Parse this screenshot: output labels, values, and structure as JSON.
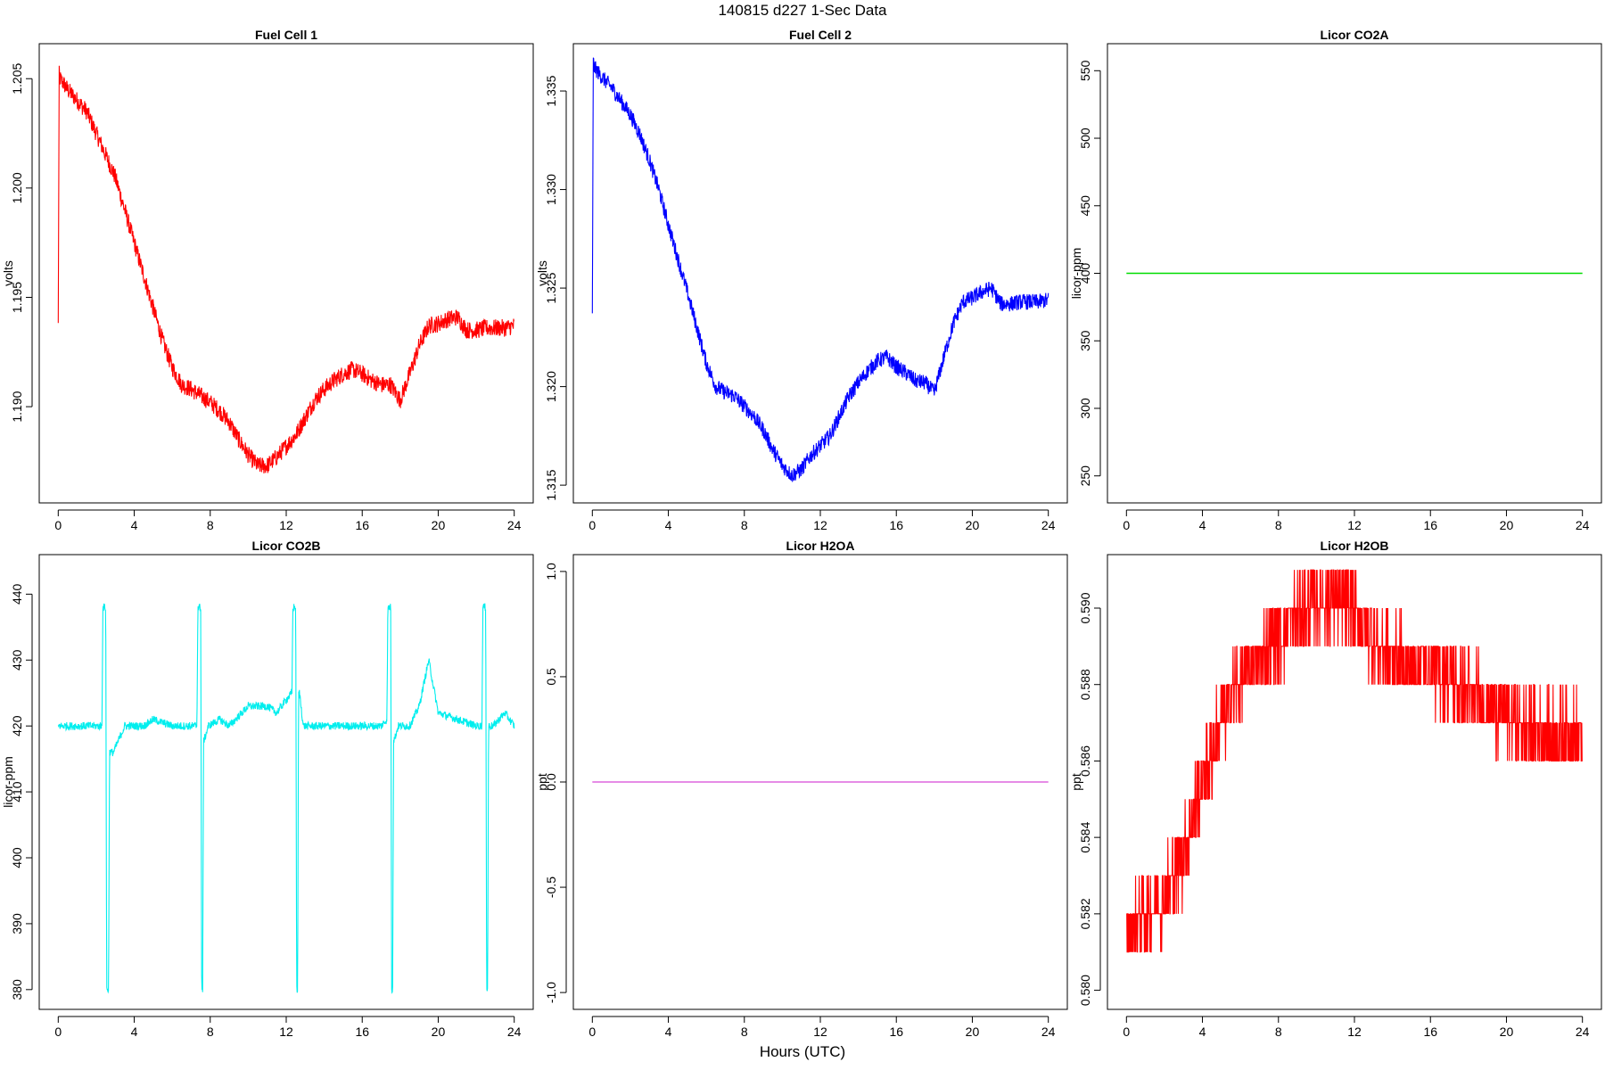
{
  "page": {
    "title": "140815   d227   1-Sec Data",
    "xlabel": "Hours (UTC)"
  },
  "chart_data": [
    {
      "type": "line",
      "title": "Fuel Cell 1",
      "ylabel": "volts",
      "color": "#ff0000",
      "xlim": [
        -1,
        25
      ],
      "ylim": [
        1.1856,
        1.2066
      ],
      "xticks": [
        0,
        4,
        8,
        12,
        16,
        20,
        24
      ],
      "yticks": [
        1.19,
        1.195,
        1.2,
        1.205
      ],
      "ytick_labels": [
        "1.190",
        "1.195",
        "1.200",
        "1.205"
      ],
      "noise": 0.0004,
      "series": [
        {
          "x": [
            0,
            0.05,
            0.1,
            0.5,
            1.0,
            1.5,
            2.0,
            2.5,
            3.0,
            3.5,
            4.0,
            4.5,
            5.0,
            5.5,
            6.0,
            6.5,
            7.0,
            7.5,
            8.0,
            8.5,
            9.0,
            9.5,
            10.0,
            10.5,
            11.0,
            11.5,
            12.0,
            12.5,
            13.0,
            13.5,
            14.0,
            14.5,
            15.0,
            15.5,
            16.0,
            16.5,
            17.0,
            17.5,
            18.0,
            18.5,
            19.0,
            19.5,
            20.0,
            20.5,
            21.0,
            21.5,
            22.0,
            22.5,
            23.0,
            23.5,
            24.0
          ],
          "y": [
            1.1937,
            1.2052,
            1.205,
            1.2045,
            1.204,
            1.2035,
            1.2025,
            1.2015,
            1.2005,
            1.199,
            1.1975,
            1.196,
            1.1945,
            1.193,
            1.1918,
            1.191,
            1.1908,
            1.1905,
            1.1902,
            1.1898,
            1.1893,
            1.1885,
            1.1878,
            1.1873,
            1.1873,
            1.1877,
            1.1882,
            1.1887,
            1.1895,
            1.1903,
            1.1908,
            1.1912,
            1.1915,
            1.1917,
            1.1915,
            1.1912,
            1.191,
            1.191,
            1.1903,
            1.1915,
            1.1928,
            1.1937,
            1.1938,
            1.194,
            1.1941,
            1.1935,
            1.1935,
            1.1936,
            1.1936,
            1.1936,
            1.1937
          ]
        }
      ]
    },
    {
      "type": "line",
      "title": "Fuel Cell 2",
      "ylabel": "volts",
      "color": "#0000ff",
      "xlim": [
        -1,
        25
      ],
      "ylim": [
        1.3141,
        1.3374
      ],
      "xticks": [
        0,
        4,
        8,
        12,
        16,
        20,
        24
      ],
      "yticks": [
        1.315,
        1.32,
        1.325,
        1.33,
        1.335
      ],
      "ytick_labels": [
        "1.315",
        "1.320",
        "1.325",
        "1.330",
        "1.335"
      ],
      "noise": 0.0004,
      "series": [
        {
          "x": [
            0,
            0.05,
            0.1,
            0.5,
            1.0,
            1.5,
            2.0,
            2.5,
            3.0,
            3.5,
            4.0,
            4.5,
            5.0,
            5.5,
            6.0,
            6.5,
            7.0,
            7.5,
            8.0,
            8.5,
            9.0,
            9.5,
            10.0,
            10.5,
            11.0,
            11.5,
            12.0,
            12.5,
            13.0,
            13.5,
            14.0,
            14.5,
            15.0,
            15.5,
            16.0,
            16.5,
            17.0,
            17.5,
            18.0,
            18.5,
            19.0,
            19.5,
            20.0,
            20.5,
            21.0,
            21.5,
            22.0,
            22.5,
            23.0,
            23.5,
            24.0
          ],
          "y": [
            1.3235,
            1.3365,
            1.3362,
            1.3357,
            1.3352,
            1.3345,
            1.3338,
            1.3328,
            1.3315,
            1.33,
            1.3282,
            1.3265,
            1.3248,
            1.323,
            1.3212,
            1.32,
            1.3197,
            1.3195,
            1.319,
            1.3185,
            1.3178,
            1.3168,
            1.316,
            1.3155,
            1.3158,
            1.3165,
            1.317,
            1.3175,
            1.3185,
            1.3195,
            1.3202,
            1.3208,
            1.3213,
            1.3215,
            1.321,
            1.3207,
            1.3203,
            1.3202,
            1.3197,
            1.3215,
            1.3232,
            1.3243,
            1.3245,
            1.3248,
            1.325,
            1.3242,
            1.3242,
            1.3243,
            1.3243,
            1.3243,
            1.3244
          ]
        }
      ]
    },
    {
      "type": "line",
      "title": "Licor CO2A",
      "ylabel": "licor-ppm",
      "color": "#00dd00",
      "xlim": [
        -1,
        25
      ],
      "ylim": [
        230,
        570
      ],
      "xticks": [
        0,
        4,
        8,
        12,
        16,
        20,
        24
      ],
      "yticks": [
        250,
        300,
        350,
        400,
        450,
        500,
        550
      ],
      "ytick_labels": [
        "250",
        "300",
        "350",
        "400",
        "450",
        "500",
        "550"
      ],
      "noise": 0,
      "series": [
        {
          "x": [
            0,
            24
          ],
          "y": [
            400,
            400
          ]
        }
      ]
    },
    {
      "type": "line",
      "title": "Licor CO2B",
      "ylabel": "licor-ppm",
      "color": "#00eeee",
      "xlim": [
        -1,
        25
      ],
      "ylim": [
        377,
        446
      ],
      "xticks": [
        0,
        4,
        8,
        12,
        16,
        20,
        24
      ],
      "yticks": [
        380,
        390,
        400,
        410,
        420,
        430,
        440
      ],
      "ytick_labels": [
        "380",
        "390",
        "400",
        "410",
        "420",
        "430",
        "440"
      ],
      "noise": 0.6,
      "series": [
        {
          "x": [
            0,
            1,
            2,
            2.3,
            2.35,
            2.5,
            2.55,
            2.6,
            2.65,
            2.7,
            2.9,
            3.5,
            4.5,
            5.0,
            6.0,
            7.0,
            7.3,
            7.35,
            7.5,
            7.55,
            7.6,
            7.65,
            7.7,
            7.9,
            8.5,
            9.0,
            10.0,
            10.5,
            11.0,
            11.5,
            12.0,
            12.3,
            12.35,
            12.5,
            12.55,
            12.6,
            12.65,
            12.7,
            12.9,
            13.5,
            14.0,
            15.0,
            16.0,
            17.0,
            17.3,
            17.35,
            17.5,
            17.55,
            17.6,
            17.65,
            17.7,
            17.9,
            18.5,
            19.0,
            19.5,
            20.0,
            21.0,
            22.0,
            22.3,
            22.35,
            22.5,
            22.55,
            22.6,
            22.65,
            22.7,
            22.9,
            23.5,
            24.0
          ],
          "y": [
            420,
            420,
            420,
            420,
            438,
            438,
            380,
            380,
            380,
            416,
            416,
            420,
            420,
            421,
            420,
            420,
            420,
            438,
            438,
            380,
            380,
            418,
            418,
            420,
            421,
            420,
            423,
            423,
            423,
            422,
            424,
            425,
            438,
            438,
            380,
            380,
            425,
            425,
            420,
            420,
            420,
            420,
            420,
            420,
            421,
            438,
            438,
            380,
            380,
            418,
            418,
            420,
            420,
            423,
            430,
            422,
            421,
            420,
            420,
            438,
            438,
            380,
            380,
            420,
            420,
            420,
            422,
            420
          ]
        }
      ]
    },
    {
      "type": "line",
      "title": "Licor H2OA",
      "ylabel": "ppt",
      "color": "#dd66dd",
      "xlim": [
        -1,
        25
      ],
      "ylim": [
        -1.08,
        1.08
      ],
      "xticks": [
        0,
        4,
        8,
        12,
        16,
        20,
        24
      ],
      "yticks": [
        -1.0,
        -0.5,
        0.0,
        0.5,
        1.0
      ],
      "ytick_labels": [
        "-1.0",
        "-0.5",
        "0.0",
        "0.5",
        "1.0"
      ],
      "noise": 0,
      "series": [
        {
          "x": [
            0,
            24
          ],
          "y": [
            0,
            0
          ]
        }
      ]
    },
    {
      "type": "line",
      "title": "Licor H2OB",
      "ylabel": "ppt",
      "color": "#ff0000",
      "xlim": [
        -1,
        25
      ],
      "ylim": [
        0.5795,
        0.5914
      ],
      "xticks": [
        0,
        4,
        8,
        12,
        16,
        20,
        24
      ],
      "yticks": [
        0.58,
        0.582,
        0.584,
        0.586,
        0.588,
        0.59
      ],
      "ytick_labels": [
        "0.580",
        "0.582",
        "0.584",
        "0.586",
        "0.588",
        "0.590"
      ],
      "noise": 0.001,
      "quantize": 0.001,
      "series": [
        {
          "x": [
            0,
            1,
            2,
            3,
            4,
            5,
            6,
            7,
            8,
            9,
            10,
            11,
            12,
            13,
            14,
            15,
            16,
            17,
            18,
            19,
            20,
            21,
            22,
            23,
            24
          ],
          "y": [
            0.5815,
            0.582,
            0.5825,
            0.5835,
            0.5855,
            0.587,
            0.5882,
            0.5887,
            0.5892,
            0.5898,
            0.5903,
            0.5902,
            0.5898,
            0.5892,
            0.5887,
            0.5885,
            0.5885,
            0.5882,
            0.5878,
            0.5875,
            0.5872,
            0.5868,
            0.5866,
            0.5866,
            0.5866
          ]
        }
      ]
    }
  ]
}
